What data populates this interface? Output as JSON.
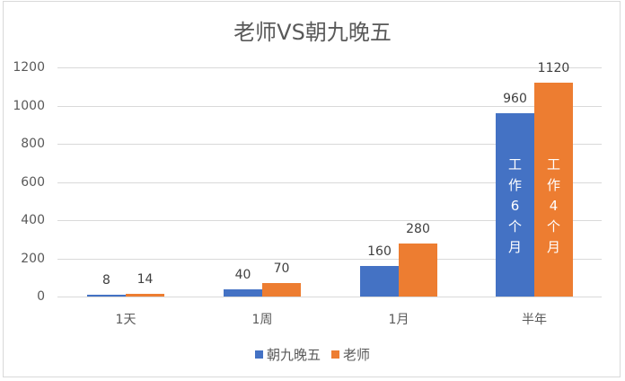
{
  "chart_data": {
    "type": "bar",
    "title": "老师VS朝九晚五",
    "categories": [
      "1天",
      "1周",
      "1月",
      "半年"
    ],
    "series": [
      {
        "name": "朝九晚五",
        "color": "#4472c4",
        "values": [
          8,
          40,
          160,
          960
        ]
      },
      {
        "name": "老师",
        "color": "#ed7d31",
        "values": [
          14,
          70,
          280,
          1120
        ]
      }
    ],
    "xlabel": "",
    "ylabel": "",
    "ylim": [
      0,
      1200
    ],
    "yticks": [
      "0",
      "200",
      "400",
      "600",
      "800",
      "1000",
      "1200"
    ],
    "grid": true,
    "legend_position": "bottom",
    "annotations": [
      {
        "series": "朝九晚五",
        "category": "半年",
        "text": [
          "工",
          "作",
          "6",
          "个",
          "月"
        ]
      },
      {
        "series": "老师",
        "category": "半年",
        "text": [
          "工",
          "作",
          "4",
          "个",
          "月"
        ]
      }
    ]
  }
}
